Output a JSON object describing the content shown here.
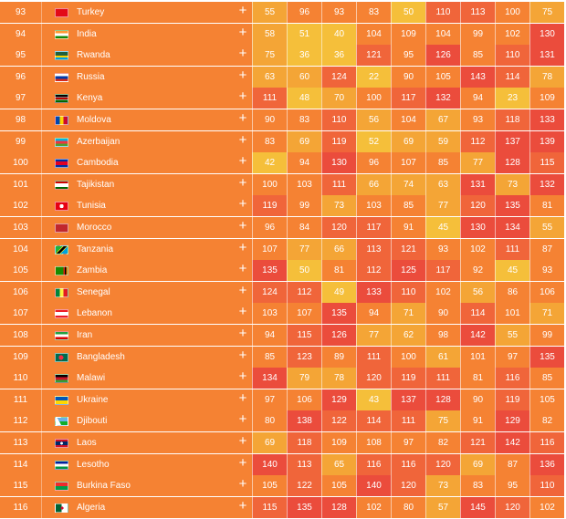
{
  "colors": {
    "left_panel": "#f58233",
    "score_scale": {
      "red": "#eb4c3c",
      "orange_red": "#f0653a",
      "orange": "#f58233",
      "amber": "#f4a536",
      "yellow": "#f5bf3a"
    }
  },
  "expand_symbol": "+",
  "rows": [
    {
      "rank": "93",
      "country": "Turkey",
      "flag": "flag-turkey-icon",
      "values": [
        55,
        96,
        93,
        83,
        50,
        110,
        113,
        100,
        75
      ]
    },
    {
      "rank": "94",
      "country": "India",
      "flag": "flag-india-icon",
      "values": [
        58,
        51,
        40,
        104,
        109,
        104,
        99,
        102,
        130
      ]
    },
    {
      "rank": "95",
      "country": "Rwanda",
      "flag": "flag-rwanda-icon",
      "values": [
        75,
        36,
        36,
        121,
        95,
        126,
        85,
        110,
        131
      ]
    },
    {
      "rank": "96",
      "country": "Russia",
      "flag": "flag-russia-icon",
      "values": [
        63,
        60,
        124,
        22,
        90,
        105,
        143,
        114,
        78
      ]
    },
    {
      "rank": "97",
      "country": "Kenya",
      "flag": "flag-kenya-icon",
      "values": [
        111,
        48,
        70,
        100,
        117,
        132,
        94,
        23,
        109
      ]
    },
    {
      "rank": "98",
      "country": "Moldova",
      "flag": "flag-moldova-icon",
      "values": [
        90,
        83,
        110,
        56,
        104,
        67,
        93,
        118,
        133
      ]
    },
    {
      "rank": "99",
      "country": "Azerbaijan",
      "flag": "flag-azerbaijan-icon",
      "values": [
        83,
        69,
        119,
        52,
        69,
        59,
        112,
        137,
        139
      ]
    },
    {
      "rank": "100",
      "country": "Cambodia",
      "flag": "flag-cambodia-icon",
      "values": [
        42,
        94,
        130,
        96,
        107,
        85,
        77,
        128,
        115
      ]
    },
    {
      "rank": "101",
      "country": "Tajikistan",
      "flag": "flag-tajikistan-icon",
      "values": [
        100,
        103,
        111,
        66,
        74,
        63,
        131,
        73,
        132
      ]
    },
    {
      "rank": "102",
      "country": "Tunisia",
      "flag": "flag-tunisia-icon",
      "values": [
        119,
        99,
        73,
        103,
        85,
        77,
        120,
        135,
        81
      ]
    },
    {
      "rank": "103",
      "country": "Morocco",
      "flag": "flag-morocco-icon",
      "values": [
        96,
        84,
        120,
        117,
        91,
        45,
        130,
        134,
        55
      ]
    },
    {
      "rank": "104",
      "country": "Tanzania",
      "flag": "flag-tanzania-icon",
      "values": [
        107,
        77,
        66,
        113,
        121,
        93,
        102,
        111,
        87
      ]
    },
    {
      "rank": "105",
      "country": "Zambia",
      "flag": "flag-zambia-icon",
      "values": [
        135,
        50,
        81,
        112,
        125,
        117,
        92,
        45,
        93
      ]
    },
    {
      "rank": "106",
      "country": "Senegal",
      "flag": "flag-senegal-icon",
      "values": [
        124,
        112,
        49,
        133,
        110,
        102,
        56,
        86,
        106
      ]
    },
    {
      "rank": "107",
      "country": "Lebanon",
      "flag": "flag-lebanon-icon",
      "values": [
        103,
        107,
        135,
        94,
        71,
        90,
        114,
        101,
        71
      ]
    },
    {
      "rank": "108",
      "country": "Iran",
      "flag": "flag-iran-icon",
      "values": [
        94,
        115,
        126,
        77,
        62,
        98,
        142,
        55,
        99
      ]
    },
    {
      "rank": "109",
      "country": "Bangladesh",
      "flag": "flag-bangladesh-icon",
      "values": [
        85,
        123,
        89,
        111,
        100,
        61,
        101,
        97,
        135
      ]
    },
    {
      "rank": "110",
      "country": "Malawi",
      "flag": "flag-malawi-icon",
      "values": [
        134,
        79,
        78,
        120,
        119,
        111,
        81,
        116,
        85
      ]
    },
    {
      "rank": "111",
      "country": "Ukraine",
      "flag": "flag-ukraine-icon",
      "values": [
        97,
        106,
        129,
        43,
        137,
        128,
        90,
        119,
        105
      ]
    },
    {
      "rank": "112",
      "country": "Djibouti",
      "flag": "flag-djibouti-icon",
      "values": [
        80,
        138,
        122,
        114,
        111,
        75,
        91,
        129,
        82
      ]
    },
    {
      "rank": "113",
      "country": "Laos",
      "flag": "flag-laos-icon",
      "values": [
        69,
        118,
        109,
        108,
        97,
        82,
        121,
        142,
        116
      ]
    },
    {
      "rank": "114",
      "country": "Lesotho",
      "flag": "flag-lesotho-icon",
      "values": [
        140,
        113,
        65,
        116,
        116,
        120,
        69,
        87,
        136
      ]
    },
    {
      "rank": "115",
      "country": "Burkina Faso",
      "flag": "flag-burkina-faso-icon",
      "values": [
        105,
        122,
        105,
        140,
        120,
        73,
        83,
        95,
        110
      ]
    },
    {
      "rank": "116",
      "country": "Algeria",
      "flag": "flag-algeria-icon",
      "values": [
        115,
        135,
        128,
        102,
        80,
        57,
        145,
        120,
        102
      ]
    }
  ]
}
